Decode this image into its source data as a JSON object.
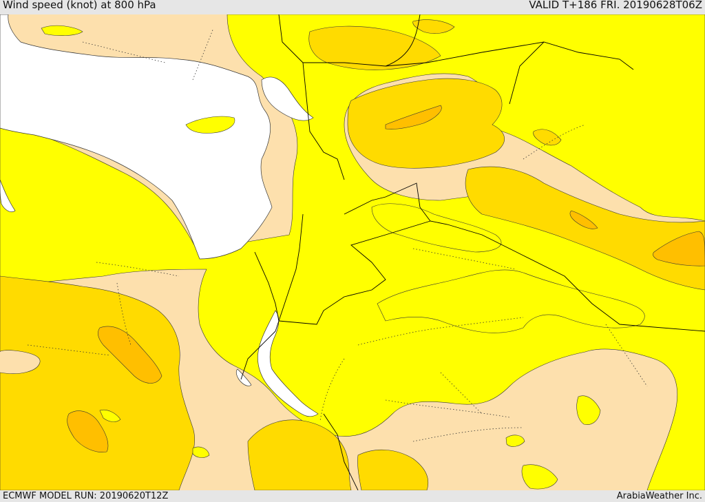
{
  "header": {
    "title": "Wind speed (knot) at 800 hPa",
    "valid": "VALID T+186 FRI. 20190628T06Z"
  },
  "footer": {
    "model_run": "ECMWF MODEL RUN: 20190620T12Z",
    "credit": "ArabiaWeather Inc."
  },
  "colors": {
    "sea": "#ffffff",
    "band_lowest": "#fde0ad",
    "band_low": "#ffff00",
    "band_mid": "#ffdb00",
    "band_high": "#ffbf00",
    "border": "#000000"
  }
}
